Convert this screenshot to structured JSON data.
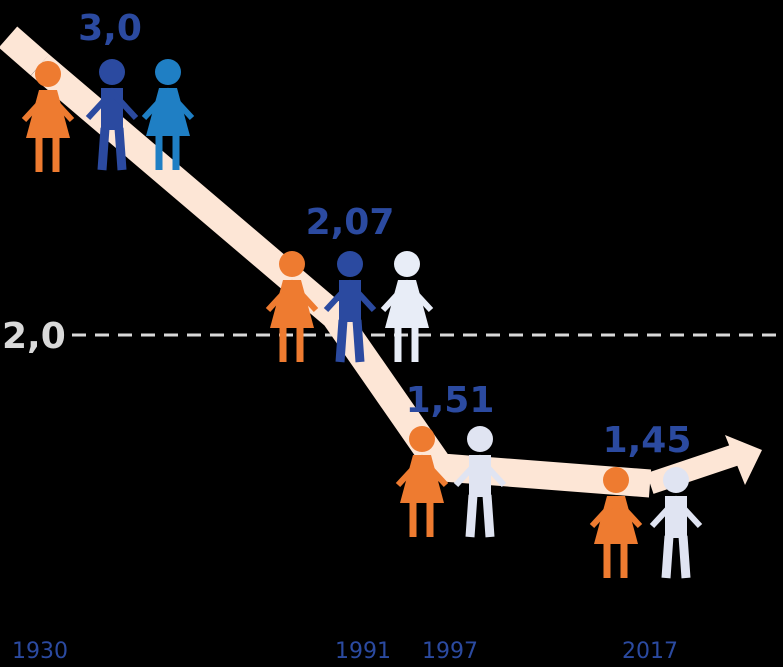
{
  "chart_data": {
    "type": "line",
    "categories": [
      "1930",
      "1991",
      "1997",
      "2017"
    ],
    "values": [
      3.0,
      2.07,
      1.51,
      1.45
    ],
    "value_labels": [
      "3,0",
      "2,07",
      "1,51",
      "1,45"
    ],
    "reference_line": {
      "value": 2,
      "label": "2,0"
    },
    "color": "#fde6d6",
    "label_color": "#2b4aa0",
    "background": "#000000"
  }
}
